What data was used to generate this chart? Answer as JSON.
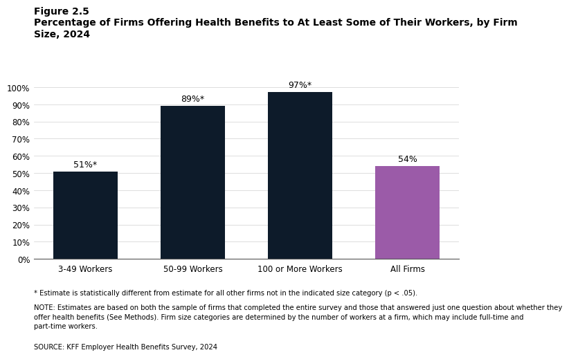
{
  "figure_label": "Figure 2.5",
  "title": "Percentage of Firms Offering Health Benefits to At Least Some of Their Workers, by Firm\nSize, 2024",
  "categories": [
    "3-49 Workers",
    "50-99 Workers",
    "100 or More Workers",
    "All Firms"
  ],
  "values": [
    51,
    89,
    97,
    54
  ],
  "bar_colors": [
    "#0d1b2a",
    "#0d1b2a",
    "#0d1b2a",
    "#9b5ba8"
  ],
  "bar_labels": [
    "51%*",
    "89%*",
    "97%*",
    "54%"
  ],
  "ylim": [
    0,
    110
  ],
  "yticks": [
    0,
    10,
    20,
    30,
    40,
    50,
    60,
    70,
    80,
    90,
    100
  ],
  "ytick_labels": [
    "0%",
    "10%",
    "20%",
    "30%",
    "40%",
    "50%",
    "60%",
    "70%",
    "80%",
    "90%",
    "100%"
  ],
  "footnote1": "* Estimate is statistically different from estimate for all other firms not in the indicated size category (p < .05).",
  "footnote2": "NOTE: Estimates are based on both the sample of firms that completed the entire survey and those that answered just one question about whether they\noffer health benefits (See Methods). Firm size categories are determined by the number of workers at a firm, which may include full-time and\npart-time workers.",
  "footnote3": "SOURCE: KFF Employer Health Benefits Survey, 2024",
  "background_color": "#ffffff",
  "tick_fontsize": 8.5,
  "title_fontsize": 10,
  "figure_label_fontsize": 10,
  "bar_label_fontsize": 9,
  "footnote_fontsize": 7.2
}
